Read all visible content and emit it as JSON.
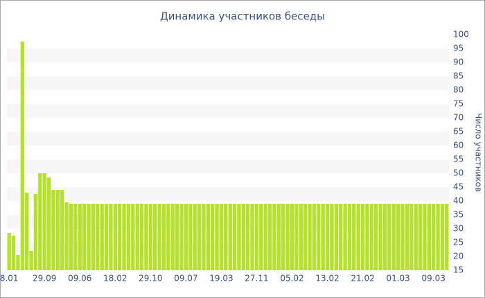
{
  "chart_data": {
    "type": "bar",
    "title": "Динамика участников беседы",
    "y_axis_label": "Число участников",
    "color": "#b5e02c",
    "axis_side": "right",
    "grid_bands": true,
    "categories": [
      "8.01",
      null,
      null,
      null,
      null,
      null,
      null,
      null,
      "29.09",
      null,
      null,
      null,
      null,
      null,
      null,
      null,
      "09.06",
      null,
      null,
      null,
      null,
      null,
      null,
      null,
      "18.02",
      null,
      null,
      null,
      null,
      null,
      null,
      null,
      "29.10",
      null,
      null,
      null,
      null,
      null,
      null,
      null,
      "09.07",
      null,
      null,
      null,
      null,
      null,
      null,
      null,
      "19.03",
      null,
      null,
      null,
      null,
      null,
      null,
      null,
      "27.11",
      null,
      null,
      null,
      null,
      null,
      null,
      null,
      "05.02",
      null,
      null,
      null,
      null,
      null,
      null,
      null,
      "13.02",
      null,
      null,
      null,
      null,
      null,
      null,
      null,
      "21.02",
      null,
      null,
      null,
      null,
      null,
      null,
      null,
      "01.03",
      null,
      null,
      null,
      null,
      null,
      null,
      null,
      "09.03",
      null,
      null,
      null
    ],
    "values": [
      28.5,
      27.5,
      20.5,
      97.5,
      43,
      22,
      42.5,
      50,
      50,
      48.5,
      44,
      44,
      44,
      39.5,
      39,
      39,
      39,
      39,
      39,
      39,
      39,
      39,
      39,
      39,
      39,
      39,
      39,
      39,
      39,
      39,
      39,
      39,
      39,
      39,
      39,
      39,
      39,
      39,
      39,
      39,
      39,
      39,
      39,
      39,
      39,
      39,
      39,
      39,
      39,
      39,
      39,
      39,
      39,
      39,
      39,
      39,
      39,
      39,
      39,
      39,
      39,
      39,
      39,
      39,
      39,
      39,
      39,
      39,
      39,
      39,
      39,
      39,
      39,
      39,
      39,
      39,
      39,
      39,
      39,
      39,
      39,
      39,
      39,
      39,
      39,
      39,
      39,
      39,
      39,
      39,
      39,
      39,
      39,
      39,
      39,
      39,
      39,
      39,
      39,
      39
    ],
    "ylim": [
      15,
      100
    ],
    "yticks": [
      15,
      20,
      25,
      30,
      35,
      40,
      45,
      50,
      55,
      60,
      65,
      70,
      75,
      80,
      85,
      90,
      95,
      100
    ]
  }
}
